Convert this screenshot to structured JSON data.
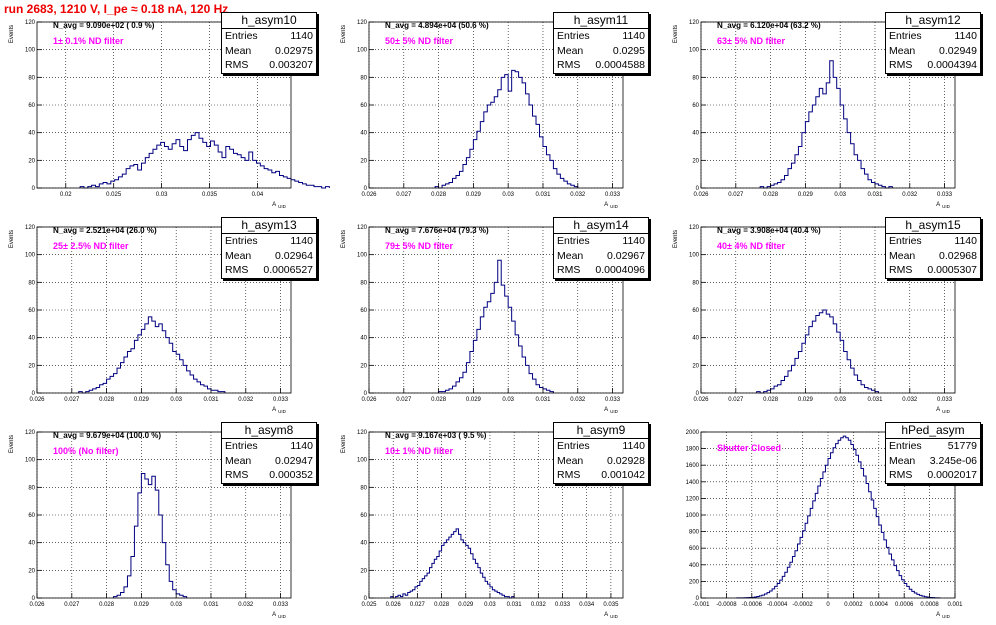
{
  "run_title": "run 2683,  1210 V, I_pe ≈ 0.18 nA, 120 Hz",
  "stats_labels": {
    "entries": "Entries",
    "mean": "Mean",
    "rms": "RMS"
  },
  "colors": {
    "histogram": "#000080",
    "title": "#ee0000",
    "annotation": "#ff00ff",
    "grid": "#000000"
  },
  "chart_data": [
    {
      "type": "bar",
      "name": "h_asym10",
      "stats": {
        "entries": "1140",
        "mean": "0.02975",
        "rms": "0.003207"
      },
      "annotation": "N_avg = 9.090e+02 ( 0.9 %)",
      "filter": "1± 0.1% ND filter",
      "xlabel": "A_UID",
      "ylabel": "Events",
      "xlim": [
        0.017,
        0.0435
      ],
      "ylim": [
        0,
        120
      ],
      "xticks": [
        0.02,
        0.025,
        0.03,
        0.035,
        0.04
      ],
      "xtick_labels": [
        "0.02",
        "0.025",
        "0.03",
        "0.035",
        "0.04"
      ],
      "yticks": [
        0,
        20,
        40,
        60,
        80,
        100,
        120
      ],
      "bin_start": 0.0215,
      "bin_width": 0.0004,
      "counts": [
        1,
        0,
        1,
        2,
        1,
        3,
        4,
        3,
        5,
        6,
        8,
        10,
        14,
        16,
        17,
        13,
        18,
        22,
        25,
        28,
        31,
        33,
        30,
        28,
        32,
        35,
        30,
        27,
        35,
        38,
        40,
        36,
        33,
        30,
        34,
        31,
        26,
        22,
        30,
        28,
        25,
        24,
        22,
        20,
        26,
        20,
        18,
        16,
        14,
        13,
        11,
        12,
        9,
        8,
        7,
        6,
        5,
        4,
        3,
        2,
        2,
        1,
        1,
        0,
        1
      ]
    },
    {
      "type": "bar",
      "name": "h_asym11",
      "stats": {
        "entries": "1140",
        "mean": "0.0295",
        "rms": "0.0004588"
      },
      "annotation": "N_avg = 4.894e+04 (50.6 %)",
      "filter": "50± 5% ND filter",
      "xlabel": "A_UID",
      "ylabel": "Events",
      "xlim": [
        0.026,
        0.0333
      ],
      "ylim": [
        0,
        120
      ],
      "xticks": [
        0.026,
        0.027,
        0.028,
        0.029,
        0.03,
        0.031,
        0.032,
        0.033
      ],
      "xtick_labels": [
        "0.026",
        "0.027",
        "0.028",
        "0.029",
        "0.03",
        "0.031",
        "0.032",
        "0.033"
      ],
      "yticks": [
        0,
        20,
        40,
        60,
        80,
        100,
        120
      ],
      "bin_start": 0.0279,
      "bin_width": 0.0001,
      "counts": [
        1,
        0,
        2,
        3,
        4,
        7,
        9,
        12,
        17,
        22,
        28,
        35,
        41,
        48,
        55,
        60,
        62,
        66,
        71,
        80,
        82,
        70,
        85,
        84,
        80,
        76,
        68,
        60,
        52,
        46,
        37,
        30,
        24,
        20,
        14,
        10,
        7,
        5,
        3,
        2,
        1
      ]
    },
    {
      "type": "bar",
      "name": "h_asym12",
      "stats": {
        "entries": "1140",
        "mean": "0.02949",
        "rms": "0.0004394"
      },
      "annotation": "N_avg = 6.120e+04 (63.2 %)",
      "filter": "63± 5% ND filter",
      "xlabel": "A_UID",
      "ylabel": "Events",
      "xlim": [
        0.026,
        0.0333
      ],
      "ylim": [
        0,
        120
      ],
      "xticks": [
        0.026,
        0.027,
        0.028,
        0.029,
        0.03,
        0.031,
        0.032,
        0.033
      ],
      "xtick_labels": [
        "0.026",
        "0.027",
        "0.028",
        "0.029",
        "0.03",
        "0.031",
        "0.032",
        "0.033"
      ],
      "yticks": [
        0,
        20,
        40,
        60,
        80,
        100,
        120
      ],
      "bin_start": 0.0277,
      "bin_width": 0.0001,
      "counts": [
        1,
        0,
        1,
        2,
        3,
        4,
        6,
        9,
        14,
        18,
        24,
        30,
        40,
        48,
        55,
        60,
        66,
        72,
        68,
        76,
        92,
        80,
        72,
        60,
        50,
        40,
        32,
        24,
        20,
        14,
        10,
        6,
        4,
        3,
        2,
        1,
        0,
        1
      ]
    },
    {
      "type": "bar",
      "name": "h_asym13",
      "stats": {
        "entries": "1140",
        "mean": "0.02964",
        "rms": "0.0006527"
      },
      "annotation": "N_avg = 2.521e+04 (26.0 %)",
      "filter": "25± 2.5% ND filter",
      "xlabel": "A_UID",
      "ylabel": "Events",
      "xlim": [
        0.026,
        0.0333
      ],
      "ylim": [
        0,
        120
      ],
      "xticks": [
        0.026,
        0.027,
        0.028,
        0.029,
        0.03,
        0.031,
        0.032,
        0.033
      ],
      "xtick_labels": [
        "0.026",
        "0.027",
        "0.028",
        "0.029",
        "0.03",
        "0.031",
        "0.032",
        "0.033"
      ],
      "yticks": [
        0,
        20,
        40,
        60,
        80,
        100,
        120
      ],
      "bin_start": 0.0272,
      "bin_width": 0.0001,
      "counts": [
        1,
        0,
        1,
        2,
        3,
        4,
        6,
        7,
        10,
        12,
        14,
        18,
        22,
        26,
        30,
        32,
        38,
        42,
        46,
        50,
        55,
        52,
        48,
        50,
        45,
        40,
        36,
        30,
        28,
        24,
        20,
        16,
        13,
        10,
        8,
        6,
        5,
        3,
        2,
        2,
        1,
        1
      ]
    },
    {
      "type": "bar",
      "name": "h_asym14",
      "stats": {
        "entries": "1140",
        "mean": "0.02967",
        "rms": "0.0004096"
      },
      "annotation": "N_avg = 7.676e+04 (79.3 %)",
      "filter": "79± 5% ND filter",
      "xlabel": "A_UID",
      "ylabel": "Events",
      "xlim": [
        0.026,
        0.0333
      ],
      "ylim": [
        0,
        120
      ],
      "xticks": [
        0.026,
        0.027,
        0.028,
        0.029,
        0.03,
        0.031,
        0.032,
        0.033
      ],
      "xtick_labels": [
        "0.026",
        "0.027",
        "0.028",
        "0.029",
        "0.03",
        "0.031",
        "0.032",
        "0.033"
      ],
      "yticks": [
        0,
        20,
        40,
        60,
        80,
        100,
        120
      ],
      "bin_start": 0.028,
      "bin_width": 0.0001,
      "counts": [
        1,
        1,
        2,
        3,
        5,
        8,
        11,
        15,
        22,
        30,
        38,
        46,
        55,
        62,
        66,
        72,
        80,
        96,
        78,
        70,
        62,
        52,
        42,
        34,
        26,
        20,
        14,
        10,
        6,
        4,
        3,
        2,
        1
      ]
    },
    {
      "type": "bar",
      "name": "h_asym15",
      "stats": {
        "entries": "1140",
        "mean": "0.02968",
        "rms": "0.0005307"
      },
      "annotation": "N_avg = 3.908e+04 (40.4 %)",
      "filter": "40± 4% ND filter",
      "xlabel": "A_UID",
      "ylabel": "Events",
      "xlim": [
        0.026,
        0.0333
      ],
      "ylim": [
        0,
        120
      ],
      "xticks": [
        0.026,
        0.027,
        0.028,
        0.029,
        0.03,
        0.031,
        0.032,
        0.033
      ],
      "xtick_labels": [
        "0.026",
        "0.027",
        "0.028",
        "0.029",
        "0.03",
        "0.031",
        "0.032",
        "0.033"
      ],
      "yticks": [
        0,
        20,
        40,
        60,
        80,
        100,
        120
      ],
      "bin_start": 0.0276,
      "bin_width": 0.0001,
      "counts": [
        1,
        0,
        1,
        2,
        3,
        5,
        6,
        9,
        12,
        16,
        20,
        25,
        30,
        36,
        42,
        48,
        52,
        56,
        58,
        60,
        57,
        55,
        50,
        44,
        38,
        30,
        24,
        18,
        13,
        9,
        6,
        4,
        3,
        2,
        1
      ]
    },
    {
      "type": "bar",
      "name": "h_asym8",
      "stats": {
        "entries": "1140",
        "mean": "0.02947",
        "rms": "0.000352"
      },
      "annotation": "N_avg = 9.679e+04 (100.0 %)",
      "filter": "100% (No filter)",
      "xlabel": "A_UID",
      "ylabel": "Events",
      "xlim": [
        0.026,
        0.0333
      ],
      "ylim": [
        0,
        120
      ],
      "xticks": [
        0.026,
        0.027,
        0.028,
        0.029,
        0.03,
        0.031,
        0.032,
        0.033
      ],
      "xtick_labels": [
        "0.026",
        "0.027",
        "0.028",
        "0.029",
        "0.03",
        "0.031",
        "0.032",
        "0.033"
      ],
      "yticks": [
        0,
        20,
        40,
        60,
        80,
        100,
        120
      ],
      "bin_start": 0.0282,
      "bin_width": 0.0001,
      "counts": [
        1,
        2,
        4,
        8,
        16,
        30,
        52,
        76,
        90,
        86,
        82,
        88,
        78,
        60,
        40,
        24,
        12,
        6,
        3,
        2,
        1
      ]
    },
    {
      "type": "bar",
      "name": "h_asym9",
      "stats": {
        "entries": "1140",
        "mean": "0.02928",
        "rms": "0.001042"
      },
      "annotation": "N_avg = 9.167e+03 ( 9.5 %)",
      "filter": "10± 1% ND filter",
      "xlabel": "A_UID",
      "ylabel": "Events",
      "xlim": [
        0.025,
        0.0355
      ],
      "ylim": [
        0,
        120
      ],
      "xticks": [
        0.025,
        0.026,
        0.027,
        0.028,
        0.029,
        0.03,
        0.031,
        0.032,
        0.033,
        0.034,
        0.035
      ],
      "xtick_labels": [
        "0.025",
        "0.026",
        "0.027",
        "0.028",
        "0.029",
        "0.03",
        "0.031",
        "0.032",
        "0.033",
        "0.034",
        "0.035"
      ],
      "yticks": [
        0,
        20,
        40,
        60,
        80,
        100,
        120
      ],
      "bin_start": 0.0259,
      "bin_width": 0.0001,
      "counts": [
        1,
        0,
        1,
        2,
        1,
        3,
        2,
        4,
        5,
        6,
        8,
        9,
        12,
        14,
        16,
        18,
        22,
        25,
        28,
        30,
        34,
        38,
        40,
        42,
        44,
        46,
        48,
        50,
        46,
        42,
        40,
        38,
        36,
        32,
        28,
        25,
        22,
        18,
        15,
        12,
        10,
        8,
        6,
        5,
        4,
        3,
        2,
        1,
        1,
        0,
        1
      ]
    },
    {
      "type": "bar",
      "name": "hPed_asym",
      "stats": {
        "entries": "51779",
        "mean": "3.245e-06",
        "rms": "0.0002017"
      },
      "annotation": "",
      "filter": "Shutter Closed",
      "xlabel": "A_UID",
      "ylabel": "",
      "xlim": [
        -0.001,
        0.001
      ],
      "ylim": [
        0,
        2000
      ],
      "xticks": [
        -0.001,
        -0.0008,
        -0.0006,
        -0.0004,
        -0.0002,
        0,
        0.0002,
        0.0004,
        0.0006,
        0.0008,
        0.001
      ],
      "xtick_labels": [
        "-0.001",
        "-0.0008",
        "-0.0006",
        "-0.0004",
        "-0.0002",
        "0",
        "0.0002",
        "0.0004",
        "0.0006",
        "0.0008",
        "0.001"
      ],
      "yticks": [
        0,
        200,
        400,
        600,
        800,
        1000,
        1200,
        1400,
        1600,
        1800,
        2000
      ],
      "bin_start": -0.00072,
      "bin_width": 2e-05,
      "counts": [
        1,
        1,
        2,
        3,
        4,
        6,
        8,
        12,
        18,
        25,
        35,
        48,
        65,
        85,
        110,
        140,
        175,
        215,
        260,
        310,
        370,
        430,
        500,
        570,
        650,
        730,
        810,
        900,
        990,
        1080,
        1170,
        1260,
        1350,
        1440,
        1520,
        1600,
        1680,
        1750,
        1810,
        1860,
        1900,
        1930,
        1950,
        1930,
        1900,
        1850,
        1790,
        1720,
        1640,
        1560,
        1470,
        1380,
        1280,
        1180,
        1080,
        980,
        880,
        790,
        700,
        610,
        530,
        460,
        390,
        330,
        270,
        220,
        175,
        140,
        105,
        80,
        60,
        44,
        32,
        22,
        15,
        10,
        6,
        4,
        2,
        1
      ]
    }
  ]
}
